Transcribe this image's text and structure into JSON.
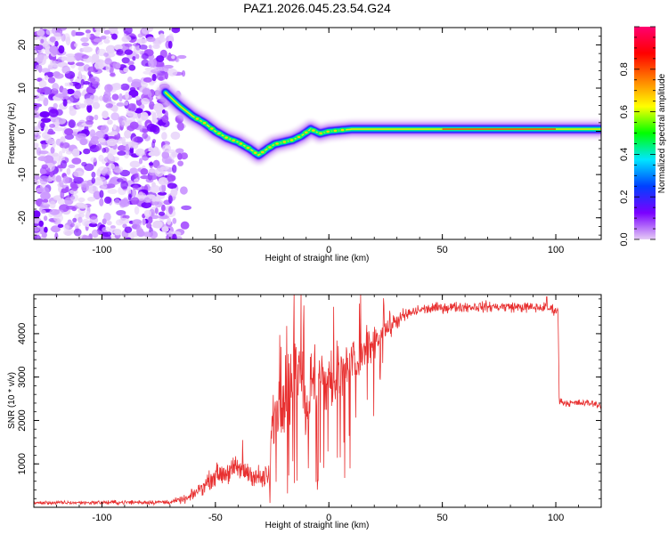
{
  "chart_data": [
    {
      "type": "heatmap",
      "title": "PAZ1.2026.045.23.54.G24",
      "xlabel": "Height of straight line (km)",
      "ylabel": "Frequency (Hz)",
      "xlim": [
        -130,
        120
      ],
      "ylim": [
        -25,
        24
      ],
      "xticks": [
        -100,
        -50,
        0,
        50,
        100
      ],
      "yticks": [
        -20,
        -10,
        0,
        10,
        20
      ],
      "trace": {
        "x": [
          -72,
          -66,
          -60,
          -55,
          -50,
          -45,
          -40,
          -35,
          -31,
          -27,
          -24,
          -20,
          -16,
          -12,
          -8,
          -4,
          0,
          10,
          20,
          40,
          60,
          80,
          100,
          120
        ],
        "y": [
          9,
          6,
          3.5,
          2,
          0,
          -1.5,
          -2.5,
          -4,
          -5.5,
          -4,
          -3,
          -2.5,
          -2,
          -1,
          0.5,
          -0.5,
          0,
          0.5,
          0.5,
          0.5,
          0.5,
          0.5,
          0.5,
          0.5
        ]
      },
      "noise_region": {
        "x_from": -130,
        "x_to": -62,
        "y_from": -25,
        "y_to": 24
      },
      "colorbar": {
        "label": "Normalized spectral amplitude",
        "range": [
          0,
          1
        ],
        "ticks": [
          "0.0",
          "0.2",
          "0.4",
          "0.6",
          "0.8"
        ],
        "colors": [
          "#e6ccf5",
          "#7a00ff",
          "#0040ff",
          "#00e6ff",
          "#00ff00",
          "#ffff00",
          "#ff8000",
          "#ff0000",
          "#ff0070"
        ]
      }
    },
    {
      "type": "line",
      "title": "",
      "xlabel": "Height of straight line (km)",
      "ylabel": "SNR (10 * v/v)",
      "xlim": [
        -130,
        120
      ],
      "ylim": [
        0,
        4900
      ],
      "xticks": [
        -100,
        -50,
        0,
        50,
        100
      ],
      "yticks": [
        1000,
        2000,
        3000,
        4000
      ],
      "color": "#e83030",
      "series": [
        {
          "name": "SNR",
          "profile": {
            "x": [
              -130,
              -70,
              -62,
              -55,
              -50,
              -45,
              -40,
              -35,
              -30,
              -26,
              -25,
              -22,
              -18,
              -15,
              -12,
              -10,
              -8,
              -5,
              -2,
              0,
              5,
              10,
              15,
              20,
              25,
              30,
              35,
              40,
              50,
              60,
              70,
              80,
              90,
              95,
              100,
              101,
              101.5,
              105,
              110,
              115,
              120
            ],
            "y": [
              100,
              120,
              200,
              500,
              750,
              800,
              900,
              800,
              650,
              700,
              1900,
              2500,
              2700,
              3100,
              3400,
              2200,
              2800,
              3000,
              2800,
              2900,
              3100,
              3300,
              3500,
              3800,
              4100,
              4300,
              4450,
              4550,
              4600,
              4620,
              4620,
              4620,
              4600,
              4600,
              4550,
              4500,
              2450,
              2400,
              2400,
              2400,
              2350
            ]
          },
          "noise_amplitude": {
            "x": [
              -130,
              -70,
              -62,
              -50,
              -40,
              -30,
              -26,
              -25,
              -15,
              -8,
              0,
              10,
              20,
              25,
              30,
              40,
              100,
              101.5,
              120
            ],
            "y": [
              60,
              80,
              150,
              350,
              450,
              400,
              450,
              1200,
              1500,
              1500,
              1300,
              1100,
              800,
              500,
              300,
              180,
              180,
              120,
              120
            ]
          },
          "spikes": [
            {
              "x": -11,
              "y": 4650
            },
            {
              "x": -9,
              "y": 900
            },
            {
              "x": -26,
              "y": 100
            },
            {
              "x": 96,
              "y": 4850
            },
            {
              "x": -38,
              "y": 1550
            },
            {
              "x": 5,
              "y": 1150
            }
          ]
        }
      ]
    }
  ]
}
